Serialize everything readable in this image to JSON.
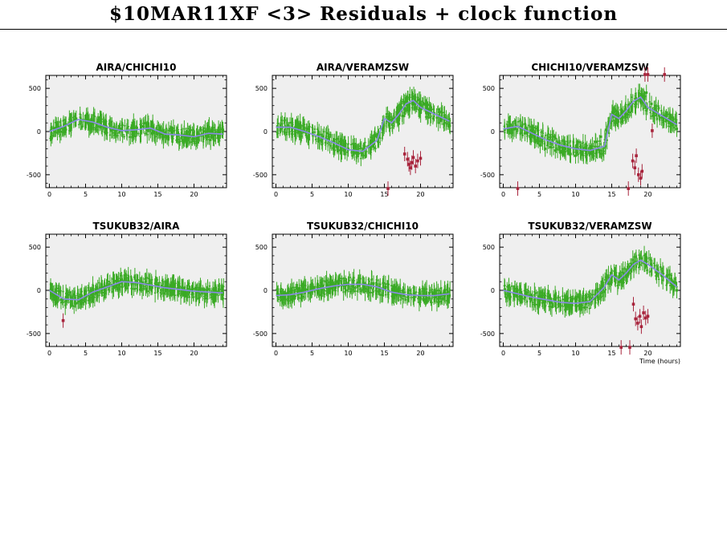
{
  "title": "$10MAR11XF <3> Residuals + clock function",
  "colors": {
    "background": "#ffffff",
    "panel_fill": "#efefef",
    "good_points": "#3aaa25",
    "flagged_points": "#a8243c",
    "clock_function": "#8a8ae6"
  },
  "chart_data": [
    {
      "type": "scatter",
      "title": "AIRA/CHICHI10",
      "xlim": [
        -0.5,
        24.5
      ],
      "ylim": [
        -650,
        650
      ],
      "xticks": [
        0,
        5,
        10,
        15,
        20
      ],
      "yticks": [
        500,
        0,
        -500
      ],
      "xlabel": "",
      "grid": false,
      "clock_function": {
        "x": [
          0,
          2,
          4,
          6,
          8,
          10,
          12,
          14,
          16,
          18,
          20,
          22,
          24
        ],
        "y": [
          0,
          60,
          140,
          110,
          50,
          10,
          20,
          40,
          -30,
          -40,
          -60,
          -20,
          -30
        ]
      },
      "good_points": {
        "x": [
          0.2,
          0.9,
          1.6,
          2.3,
          3.0,
          3.7,
          4.4,
          5.1,
          5.8,
          6.5,
          7.2,
          7.9,
          8.6,
          9.3,
          10.0,
          10.7,
          11.4,
          12.1,
          12.8,
          13.5,
          14.2,
          14.9,
          15.6,
          16.3,
          17.0,
          17.7,
          18.4,
          19.1,
          19.8,
          20.5,
          21.2,
          21.9,
          22.6,
          23.3,
          24.0
        ],
        "y": [
          10,
          40,
          40,
          80,
          110,
          150,
          110,
          130,
          110,
          80,
          60,
          40,
          10,
          20,
          30,
          0,
          10,
          40,
          60,
          30,
          -20,
          -30,
          -30,
          -60,
          -70,
          -40,
          -50,
          -80,
          -50,
          -20,
          -30,
          -60,
          -10,
          -40,
          20
        ]
      },
      "flagged_points": {
        "x": [],
        "y": []
      }
    },
    {
      "type": "scatter",
      "title": "AIRA/VERAMZSW",
      "xlim": [
        -0.5,
        24.5
      ],
      "ylim": [
        -650,
        650
      ],
      "xticks": [
        0,
        5,
        10,
        15,
        20
      ],
      "yticks": [
        500,
        0,
        -500
      ],
      "xlabel": "",
      "grid": false,
      "clock_function": {
        "x": [
          0,
          2,
          4,
          6,
          8,
          10,
          12,
          14,
          15,
          16,
          17,
          18,
          19,
          20,
          22,
          24
        ],
        "y": [
          50,
          50,
          0,
          -60,
          -130,
          -210,
          -230,
          -100,
          150,
          100,
          200,
          320,
          360,
          280,
          200,
          120
        ]
      },
      "good_points": {
        "x": [
          0.2,
          0.9,
          1.6,
          2.3,
          3.0,
          3.7,
          4.4,
          5.1,
          5.8,
          6.5,
          7.2,
          7.9,
          8.6,
          9.3,
          10.0,
          10.7,
          11.4,
          12.1,
          12.8,
          13.5,
          14.2,
          14.9,
          15.6,
          16.3,
          17.0,
          17.7,
          18.4,
          19.1,
          19.8,
          20.5,
          21.2,
          21.9,
          22.6,
          23.3,
          24.0
        ],
        "y": [
          60,
          50,
          70,
          40,
          60,
          10,
          30,
          -10,
          -40,
          -60,
          -90,
          -120,
          -150,
          -180,
          -200,
          -220,
          -260,
          -220,
          -170,
          -120,
          -60,
          40,
          150,
          120,
          90,
          180,
          240,
          330,
          370,
          320,
          260,
          210,
          180,
          150,
          80
        ]
      },
      "flagged_points": {
        "x": [
          17.8,
          18.2,
          18.4,
          18.6,
          18.8,
          19.0,
          19.3,
          19.6,
          20.0,
          15.5
        ],
        "y": [
          -260,
          -320,
          -380,
          -420,
          -360,
          -300,
          -400,
          -340,
          -310,
          -660
        ]
      }
    },
    {
      "type": "scatter",
      "title": "CHICHI10/VERAMZSW",
      "xlim": [
        -0.5,
        24.5
      ],
      "ylim": [
        -650,
        650
      ],
      "xticks": [
        0,
        5,
        10,
        15,
        20
      ],
      "yticks": [
        500,
        0,
        -500
      ],
      "xlabel": "",
      "grid": false,
      "clock_function": {
        "x": [
          0,
          2,
          4,
          6,
          8,
          10,
          12,
          14,
          15,
          16,
          17,
          18,
          19,
          20,
          22,
          24
        ],
        "y": [
          30,
          60,
          -20,
          -100,
          -160,
          -200,
          -220,
          -170,
          200,
          150,
          240,
          350,
          400,
          280,
          180,
          80
        ]
      },
      "good_points": {
        "x": [
          0.2,
          0.9,
          1.6,
          2.3,
          3.0,
          3.7,
          4.4,
          5.1,
          5.8,
          6.5,
          7.2,
          7.9,
          8.6,
          9.3,
          10.0,
          10.7,
          11.4,
          12.1,
          12.8,
          13.5,
          14.2,
          14.9,
          15.6,
          16.3,
          17.0,
          17.7,
          18.4,
          19.1,
          19.8,
          20.5,
          21.2,
          21.9,
          22.6,
          23.3,
          24.0
        ],
        "y": [
          20,
          80,
          30,
          50,
          -20,
          -60,
          -100,
          -160,
          -200,
          -180,
          -220,
          -240,
          -200,
          -260,
          -280,
          -240,
          -220,
          -180,
          -120,
          -60,
          20,
          120,
          240,
          180,
          200,
          300,
          360,
          420,
          450,
          320,
          220,
          160,
          140,
          100,
          30
        ]
      },
      "flagged_points": {
        "x": [
          17.9,
          18.2,
          18.4,
          18.7,
          19.0,
          19.2,
          20.6,
          2.0,
          17.3,
          19.6,
          20.0,
          22.3
        ],
        "y": [
          -340,
          -420,
          -280,
          -500,
          -540,
          -460,
          10,
          -660,
          -660,
          660,
          660,
          660
        ]
      }
    },
    {
      "type": "scatter",
      "title": "TSUKUB32/AIRA",
      "xlim": [
        -0.5,
        24.5
      ],
      "ylim": [
        -650,
        650
      ],
      "xticks": [
        0,
        5,
        10,
        15,
        20
      ],
      "yticks": [
        500,
        0,
        -500
      ],
      "xlabel": "",
      "grid": false,
      "clock_function": {
        "x": [
          0,
          2,
          4,
          6,
          8,
          10,
          12,
          14,
          16,
          18,
          20,
          22,
          24
        ],
        "y": [
          0,
          -100,
          -110,
          -20,
          40,
          100,
          90,
          60,
          30,
          10,
          -10,
          -20,
          -30
        ]
      },
      "good_points": {
        "x": [
          0.2,
          0.9,
          1.6,
          2.3,
          3.0,
          3.7,
          4.4,
          5.1,
          5.8,
          6.5,
          7.2,
          7.9,
          8.6,
          9.3,
          10.0,
          10.7,
          11.4,
          12.1,
          12.8,
          13.5,
          14.2,
          14.9,
          15.6,
          16.3,
          17.0,
          17.7,
          18.4,
          19.1,
          19.8,
          20.5,
          21.2,
          21.9,
          22.6,
          23.3,
          24.0
        ],
        "y": [
          0,
          -60,
          -110,
          -120,
          -100,
          -150,
          -80,
          -70,
          -50,
          -10,
          20,
          40,
          60,
          90,
          120,
          100,
          70,
          100,
          80,
          70,
          40,
          60,
          50,
          90,
          70,
          20,
          40,
          10,
          0,
          -20,
          -30,
          10,
          -40,
          -20,
          -30
        ]
      },
      "flagged_points": {
        "x": [
          1.9
        ],
        "y": [
          -350
        ]
      }
    },
    {
      "type": "scatter",
      "title": "TSUKUB32/CHICHI10",
      "xlim": [
        -0.5,
        24.5
      ],
      "ylim": [
        -650,
        650
      ],
      "xticks": [
        0,
        5,
        10,
        15,
        20
      ],
      "yticks": [
        500,
        0,
        -500
      ],
      "xlabel": "",
      "grid": false,
      "clock_function": {
        "x": [
          0,
          2,
          4,
          6,
          8,
          10,
          12,
          14,
          16,
          18,
          20,
          22,
          24
        ],
        "y": [
          -60,
          -50,
          -20,
          20,
          50,
          70,
          70,
          40,
          -20,
          -50,
          -60,
          -60,
          -40
        ]
      },
      "good_points": {
        "x": [
          0.2,
          0.9,
          1.6,
          2.3,
          3.0,
          3.7,
          4.4,
          5.1,
          5.8,
          6.5,
          7.2,
          7.9,
          8.6,
          9.3,
          10.0,
          10.7,
          11.4,
          12.1,
          12.8,
          13.5,
          14.2,
          14.9,
          15.6,
          16.3,
          17.0,
          17.7,
          18.4,
          19.1,
          19.8,
          20.5,
          21.2,
          21.9,
          22.6,
          23.3,
          24.0
        ],
        "y": [
          -40,
          -70,
          -30,
          -60,
          -20,
          -10,
          10,
          40,
          30,
          50,
          60,
          40,
          80,
          60,
          70,
          50,
          90,
          70,
          60,
          80,
          40,
          20,
          -10,
          -20,
          -40,
          -60,
          -50,
          -40,
          -70,
          -60,
          -30,
          -50,
          -80,
          -40,
          -60
        ]
      },
      "flagged_points": {
        "x": [],
        "y": []
      }
    },
    {
      "type": "scatter",
      "title": "TSUKUB32/VERAMZSW",
      "xlim": [
        -0.5,
        24.5
      ],
      "ylim": [
        -650,
        650
      ],
      "xticks": [
        0,
        5,
        10,
        15,
        20
      ],
      "yticks": [
        500,
        0,
        -500
      ],
      "xlabel": "Time (hours)",
      "grid": false,
      "clock_function": {
        "x": [
          0,
          2,
          4,
          6,
          8,
          10,
          12,
          14,
          15,
          16,
          17,
          18,
          19,
          20,
          22,
          24
        ],
        "y": [
          0,
          -40,
          -80,
          -110,
          -140,
          -150,
          -130,
          40,
          180,
          120,
          200,
          300,
          350,
          300,
          180,
          40
        ]
      },
      "good_points": {
        "x": [
          0.2,
          0.9,
          1.6,
          2.3,
          3.0,
          3.7,
          4.4,
          5.1,
          5.8,
          6.5,
          7.2,
          7.9,
          8.6,
          9.3,
          10.0,
          10.7,
          11.4,
          12.1,
          12.8,
          13.5,
          14.2,
          14.9,
          15.6,
          16.3,
          17.0,
          17.7,
          18.4,
          19.1,
          19.8,
          20.5,
          21.2,
          21.9,
          22.6,
          23.3,
          24.0
        ],
        "y": [
          10,
          -20,
          -30,
          -60,
          -80,
          -100,
          -110,
          -90,
          -130,
          -140,
          -110,
          -160,
          -150,
          -170,
          -150,
          -160,
          -140,
          -120,
          -60,
          20,
          150,
          200,
          170,
          100,
          160,
          220,
          320,
          370,
          360,
          290,
          210,
          170,
          160,
          110,
          0
        ]
      },
      "flagged_points": {
        "x": [
          18.0,
          18.3,
          18.6,
          18.9,
          19.1,
          19.4,
          19.7,
          20.0,
          16.3,
          17.5
        ],
        "y": [
          -160,
          -330,
          -380,
          -300,
          -420,
          -260,
          -320,
          -300,
          -660,
          -660
        ]
      }
    }
  ]
}
